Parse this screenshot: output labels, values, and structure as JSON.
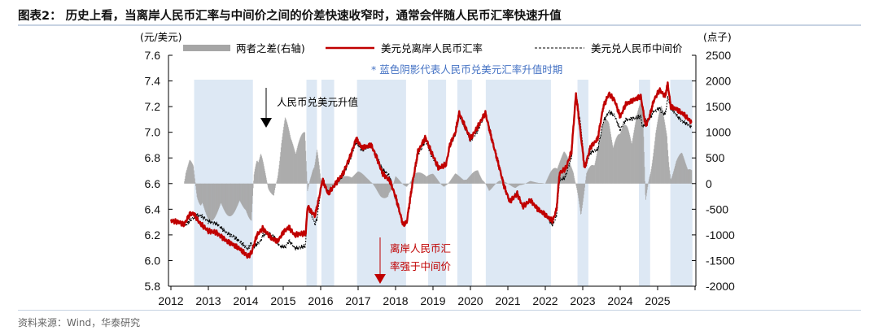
{
  "header": {
    "title": "图表2：  历史上看，当离岸人民币汇率与中间价之间的价差快速收窄时，通常会伴随人民币汇率快速升值"
  },
  "footer": {
    "source": "资料来源：Wind，华泰研究"
  },
  "chart_data": {
    "type": "bar+line",
    "left_axis_unit": "(元/美元)",
    "right_axis_unit": "(点子)",
    "ylim_left": [
      5.8,
      7.6
    ],
    "yticks_left": [
      "7.6",
      "7.4",
      "7.2",
      "7.0",
      "6.8",
      "6.6",
      "6.4",
      "6.2",
      "6.0",
      "5.8"
    ],
    "ylim_right": [
      -2000,
      2500
    ],
    "yticks_right": [
      "2500",
      "2000",
      "1500",
      "1000",
      "500",
      "0",
      "-500",
      "-1000",
      "-1500",
      "-2000"
    ],
    "xlim": [
      2012,
      2026
    ],
    "xticks": [
      "2012",
      "2013",
      "2014",
      "2015",
      "2016",
      "2017",
      "2018",
      "2019",
      "2020",
      "2021",
      "2022",
      "2023",
      "2024",
      "2025"
    ],
    "legend": {
      "spread": "两者之差(右轴)",
      "cnh": "美元兑离岸人民币汇率",
      "mid": "美元兑人民币中间价"
    },
    "colors": {
      "spread": "#a6a6a6",
      "cnh": "#c00000",
      "mid": "#000000",
      "shade": "#dde8f4",
      "note": "#4472c4"
    },
    "note": "* 蓝色阴影代表人民币兑美元汇率升值时期",
    "annotations": {
      "appreciation": "人民币兑美元升值",
      "cnh_stronger": [
        "离岸人民币汇",
        "率强于中间价"
      ]
    },
    "appreciation_periods": [
      [
        2012.62,
        2014.19
      ],
      [
        2015.62,
        2015.9
      ],
      [
        2016.02,
        2016.36
      ],
      [
        2016.97,
        2018.28
      ],
      [
        2018.87,
        2019.35
      ],
      [
        2019.65,
        2020.04
      ],
      [
        2020.41,
        2022.15
      ],
      [
        2022.86,
        2023.15
      ],
      [
        2024.5,
        2024.8
      ],
      [
        2025.34,
        2025.93
      ]
    ],
    "cnh": [
      [
        2012.0,
        6.31
      ],
      [
        2012.2,
        6.3
      ],
      [
        2012.35,
        6.28
      ],
      [
        2012.5,
        6.36
      ],
      [
        2012.6,
        6.37
      ],
      [
        2012.75,
        6.3
      ],
      [
        2013.0,
        6.23
      ],
      [
        2013.2,
        6.22
      ],
      [
        2013.5,
        6.15
      ],
      [
        2013.8,
        6.1
      ],
      [
        2014.0,
        6.05
      ],
      [
        2014.05,
        6.03
      ],
      [
        2014.15,
        6.06
      ],
      [
        2014.3,
        6.2
      ],
      [
        2014.45,
        6.25
      ],
      [
        2014.7,
        6.17
      ],
      [
        2014.85,
        6.15
      ],
      [
        2015.0,
        6.22
      ],
      [
        2015.15,
        6.26
      ],
      [
        2015.3,
        6.2
      ],
      [
        2015.5,
        6.21
      ],
      [
        2015.6,
        6.21
      ],
      [
        2015.65,
        6.42
      ],
      [
        2015.75,
        6.38
      ],
      [
        2015.85,
        6.35
      ],
      [
        2015.95,
        6.48
      ],
      [
        2016.05,
        6.63
      ],
      [
        2016.2,
        6.52
      ],
      [
        2016.4,
        6.6
      ],
      [
        2016.6,
        6.68
      ],
      [
        2016.8,
        6.82
      ],
      [
        2016.95,
        6.95
      ],
      [
        2017.1,
        6.88
      ],
      [
        2017.35,
        6.9
      ],
      [
        2017.5,
        6.8
      ],
      [
        2017.65,
        6.68
      ],
      [
        2017.85,
        6.62
      ],
      [
        2018.0,
        6.5
      ],
      [
        2018.2,
        6.28
      ],
      [
        2018.3,
        6.3
      ],
      [
        2018.45,
        6.6
      ],
      [
        2018.6,
        6.85
      ],
      [
        2018.8,
        6.96
      ],
      [
        2018.95,
        6.85
      ],
      [
        2019.15,
        6.72
      ],
      [
        2019.35,
        6.75
      ],
      [
        2019.45,
        6.9
      ],
      [
        2019.6,
        7.0
      ],
      [
        2019.7,
        7.15
      ],
      [
        2019.85,
        7.05
      ],
      [
        2020.0,
        6.95
      ],
      [
        2020.15,
        7.02
      ],
      [
        2020.3,
        7.1
      ],
      [
        2020.4,
        7.15
      ],
      [
        2020.55,
        6.97
      ],
      [
        2020.75,
        6.75
      ],
      [
        2020.9,
        6.58
      ],
      [
        2021.05,
        6.46
      ],
      [
        2021.25,
        6.52
      ],
      [
        2021.4,
        6.42
      ],
      [
        2021.6,
        6.47
      ],
      [
        2021.8,
        6.4
      ],
      [
        2021.95,
        6.37
      ],
      [
        2022.1,
        6.33
      ],
      [
        2022.2,
        6.31
      ],
      [
        2022.3,
        6.4
      ],
      [
        2022.38,
        6.68
      ],
      [
        2022.55,
        6.72
      ],
      [
        2022.7,
        6.85
      ],
      [
        2022.82,
        7.3
      ],
      [
        2022.9,
        7.1
      ],
      [
        2023.0,
        6.85
      ],
      [
        2023.05,
        6.72
      ],
      [
        2023.2,
        6.88
      ],
      [
        2023.4,
        6.95
      ],
      [
        2023.55,
        7.2
      ],
      [
        2023.7,
        7.3
      ],
      [
        2023.85,
        7.25
      ],
      [
        2024.0,
        7.12
      ],
      [
        2024.15,
        7.22
      ],
      [
        2024.35,
        7.25
      ],
      [
        2024.55,
        7.28
      ],
      [
        2024.68,
        7.05
      ],
      [
        2024.78,
        7.12
      ],
      [
        2024.9,
        7.25
      ],
      [
        2025.05,
        7.33
      ],
      [
        2025.2,
        7.28
      ],
      [
        2025.27,
        7.38
      ],
      [
        2025.35,
        7.2
      ],
      [
        2025.5,
        7.18
      ],
      [
        2025.7,
        7.14
      ],
      [
        2025.9,
        7.08
      ]
    ],
    "spread": [
      [
        2012.0,
        0
      ],
      [
        2012.35,
        0
      ],
      [
        2012.4,
        300
      ],
      [
        2012.5,
        500
      ],
      [
        2012.6,
        350
      ],
      [
        2012.7,
        -300
      ],
      [
        2012.8,
        -650
      ],
      [
        2013.0,
        -750
      ],
      [
        2013.2,
        -700
      ],
      [
        2013.5,
        -650
      ],
      [
        2013.8,
        -600
      ],
      [
        2014.0,
        -550
      ],
      [
        2014.15,
        -750
      ],
      [
        2014.22,
        200
      ],
      [
        2014.3,
        700
      ],
      [
        2014.4,
        800
      ],
      [
        2014.5,
        300
      ],
      [
        2014.6,
        -100
      ],
      [
        2014.75,
        -300
      ],
      [
        2014.85,
        200
      ],
      [
        2014.95,
        900
      ],
      [
        2015.05,
        1300
      ],
      [
        2015.2,
        1000
      ],
      [
        2015.4,
        1050
      ],
      [
        2015.58,
        1000
      ],
      [
        2015.65,
        -150
      ],
      [
        2015.75,
        200
      ],
      [
        2015.9,
        900
      ],
      [
        2016.0,
        100
      ],
      [
        2016.2,
        -150
      ],
      [
        2016.5,
        100
      ],
      [
        2016.8,
        200
      ],
      [
        2017.0,
        250
      ],
      [
        2017.3,
        100
      ],
      [
        2017.6,
        -250
      ],
      [
        2017.8,
        -400
      ],
      [
        2018.0,
        150
      ],
      [
        2018.3,
        -100
      ],
      [
        2018.5,
        200
      ],
      [
        2018.8,
        250
      ],
      [
        2019.0,
        200
      ],
      [
        2019.3,
        -100
      ],
      [
        2019.6,
        200
      ],
      [
        2019.9,
        100
      ],
      [
        2020.2,
        300
      ],
      [
        2020.5,
        -150
      ],
      [
        2020.8,
        100
      ],
      [
        2021.2,
        -100
      ],
      [
        2021.6,
        50
      ],
      [
        2022.0,
        0
      ],
      [
        2022.3,
        500
      ],
      [
        2022.5,
        650
      ],
      [
        2022.75,
        300
      ],
      [
        2022.95,
        -700
      ],
      [
        2023.1,
        200
      ],
      [
        2023.3,
        600
      ],
      [
        2023.5,
        1100
      ],
      [
        2023.7,
        1400
      ],
      [
        2023.85,
        1200
      ],
      [
        2024.0,
        1000
      ],
      [
        2024.2,
        1300
      ],
      [
        2024.45,
        1500
      ],
      [
        2024.6,
        1600
      ],
      [
        2024.68,
        -400
      ],
      [
        2024.8,
        300
      ],
      [
        2024.95,
        1100
      ],
      [
        2025.1,
        1550
      ],
      [
        2025.25,
        1300
      ],
      [
        2025.35,
        100
      ],
      [
        2025.5,
        450
      ],
      [
        2025.65,
        650
      ],
      [
        2025.8,
        500
      ],
      [
        2025.92,
        300
      ]
    ]
  }
}
